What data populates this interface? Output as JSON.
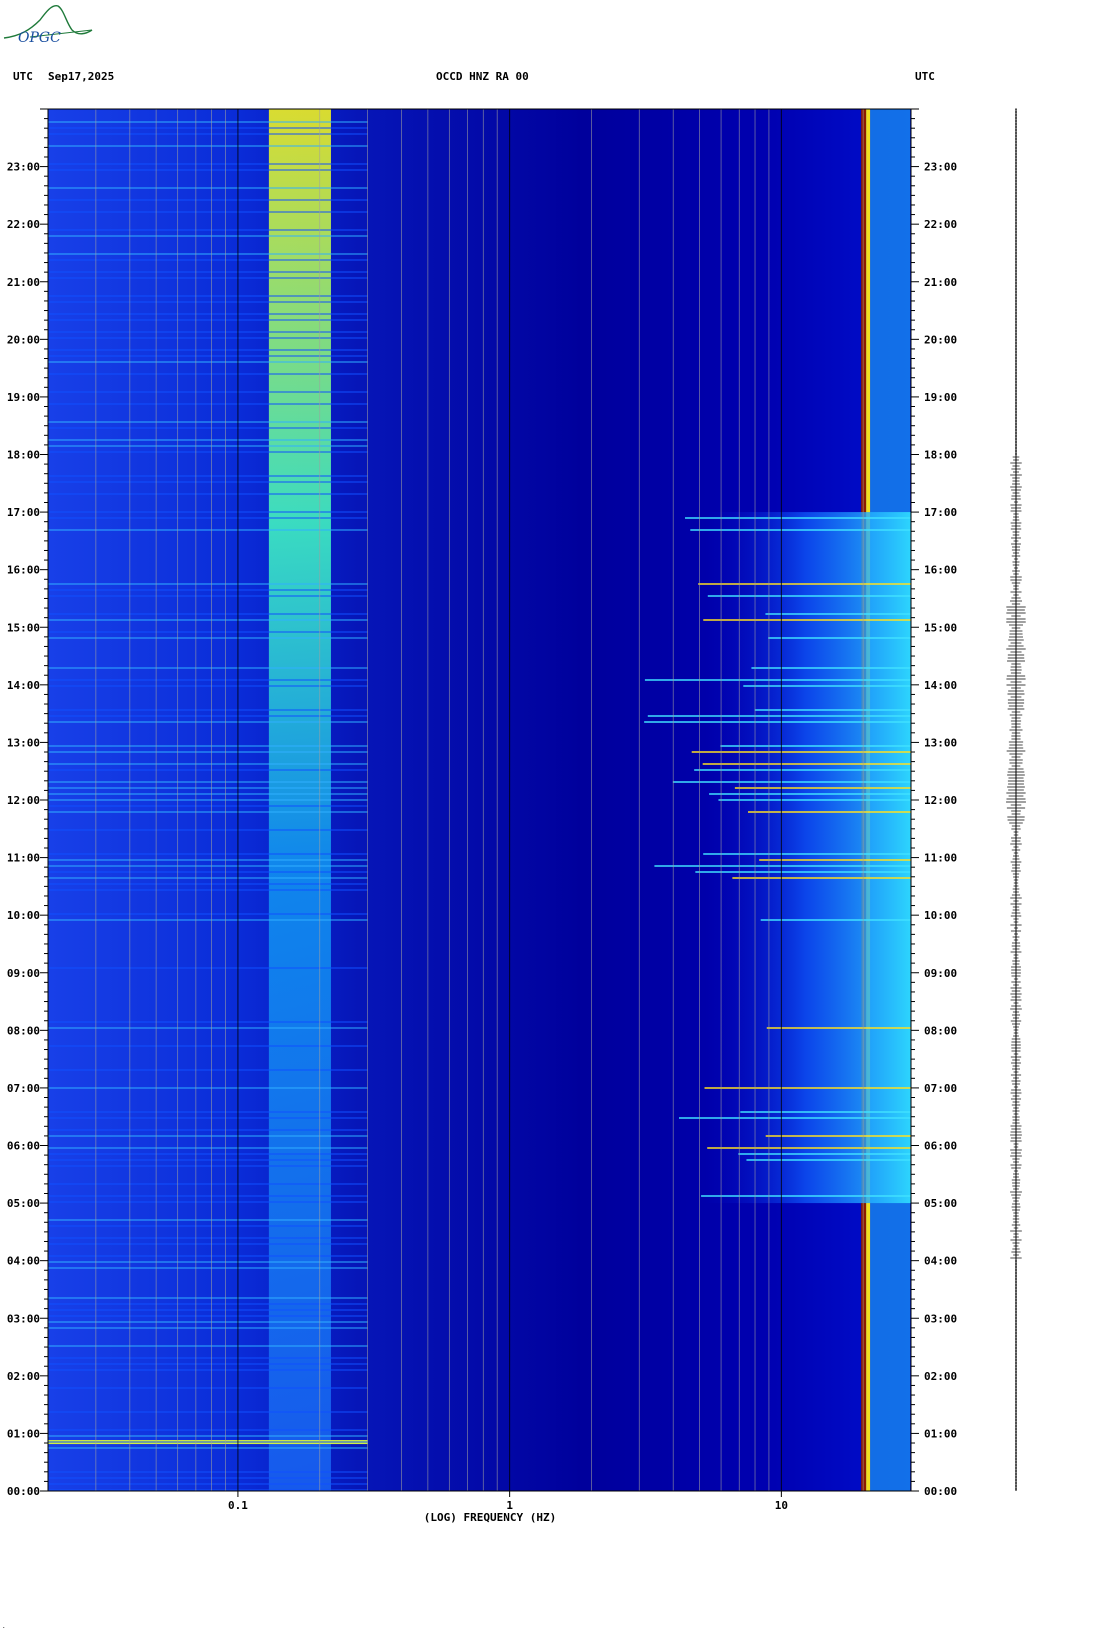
{
  "header": {
    "left_utc": "UTC",
    "date": "Sep17,2025",
    "station": "OCCD HNZ RA 00",
    "right_utc": "UTC"
  },
  "logo": {
    "text": "OPGC",
    "color": "#1f7a3a"
  },
  "chart_data": {
    "type": "heatmap",
    "title": "OCCD HNZ RA 00",
    "xlabel": "(LOG) FREQUENCY (HZ)",
    "ylabel": "",
    "x_scale": "log",
    "xlim": [
      0.02,
      30
    ],
    "x_ticks": [
      {
        "value": 0.1,
        "label": "0.1"
      },
      {
        "value": 1,
        "label": "1"
      },
      {
        "value": 10,
        "label": "10"
      }
    ],
    "y_unit": "hour UTC",
    "ylim": [
      0,
      24
    ],
    "y_ticks": [
      "00:00",
      "01:00",
      "02:00",
      "03:00",
      "04:00",
      "05:00",
      "06:00",
      "07:00",
      "08:00",
      "09:00",
      "10:00",
      "11:00",
      "12:00",
      "13:00",
      "14:00",
      "15:00",
      "16:00",
      "17:00",
      "18:00",
      "19:00",
      "20:00",
      "21:00",
      "22:00",
      "23:00"
    ],
    "colormap": [
      "#00008b",
      "#0000ff",
      "#00a0ff",
      "#00ffff",
      "#ffff00",
      "#ff0000",
      "#8b0000"
    ],
    "features": [
      {
        "name": "microseism band",
        "freq_range": [
          0.13,
          0.22
        ],
        "time_range": [
          0,
          24
        ],
        "level": 0.62
      },
      {
        "name": "line 20 Hz",
        "freq": 20,
        "time_range": [
          0,
          24
        ],
        "level": 1.0
      },
      {
        "name": "cultural noise",
        "freq_range": [
          5,
          30
        ],
        "time_range": [
          5,
          17
        ],
        "level": 0.75
      },
      {
        "name": "low-frequency event",
        "freq_range": [
          0.02,
          0.3
        ],
        "time": 0.85,
        "level": 0.8
      }
    ],
    "trace": "seismogram trace (right side)"
  },
  "footer_mark": "."
}
